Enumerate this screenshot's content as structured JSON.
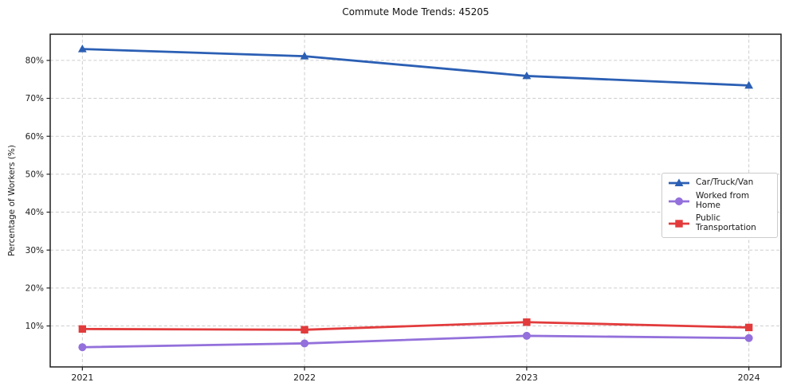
{
  "chart_data": {
    "type": "line",
    "title": "Commute Mode Trends: 45205",
    "xlabel": "",
    "ylabel": "Percentage of Workers (%)",
    "categories": [
      "2021",
      "2022",
      "2023",
      "2024"
    ],
    "series": [
      {
        "name": "Car/Truck/Van",
        "color": "#2b5fb4",
        "marker": "triangle",
        "values": [
          83.0,
          81.1,
          75.9,
          73.4
        ]
      },
      {
        "name": "Worked from Home",
        "color": "#9370db",
        "marker": "circle",
        "values": [
          4.4,
          5.4,
          7.4,
          6.8
        ]
      },
      {
        "name": "Public Transportation",
        "color": "#e23b3c",
        "marker": "square",
        "values": [
          9.2,
          9.0,
          11.0,
          9.6
        ]
      }
    ],
    "yticks": [
      10,
      20,
      30,
      40,
      50,
      60,
      70,
      80
    ],
    "ytick_suffix": "%",
    "ylim": [
      -0.8,
      86.9
    ],
    "grid": "dashed",
    "grid_color": "#cdcdcd",
    "spine_color": "#1f1f1f",
    "tick_label_color": "#1c1c1c",
    "legend_position": "center-right"
  }
}
